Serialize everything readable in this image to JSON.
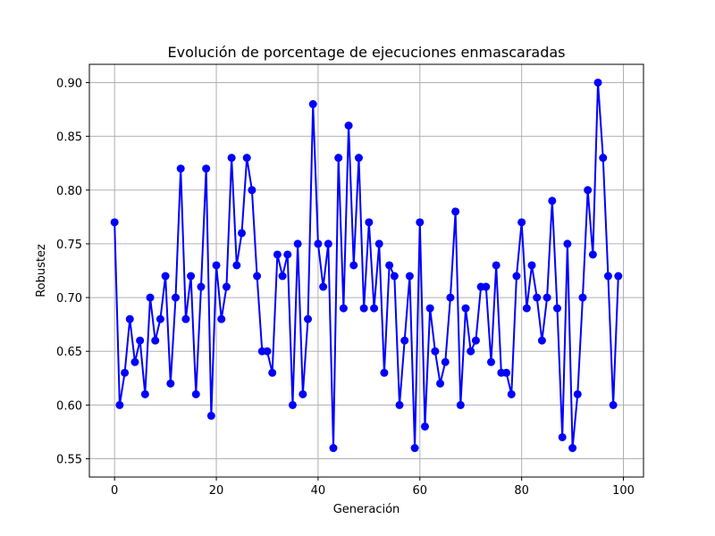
{
  "chart_data": {
    "type": "line",
    "title": "Evolución de porcentage de ejecuciones enmascaradas",
    "xlabel": "Generación",
    "ylabel": "Robustez",
    "xlim": [
      -4.95,
      103.95
    ],
    "ylim": [
      0.533,
      0.917
    ],
    "xticks": [
      0,
      20,
      40,
      60,
      80,
      100
    ],
    "yticks": [
      0.55,
      0.6,
      0.65,
      0.7,
      0.75,
      0.8,
      0.85,
      0.9
    ],
    "ytick_labels": [
      "0.55",
      "0.60",
      "0.65",
      "0.70",
      "0.75",
      "0.80",
      "0.85",
      "0.90"
    ],
    "grid": true,
    "series": [
      {
        "color": "#0000ff",
        "marker": "circle",
        "x": [
          0,
          1,
          2,
          3,
          4,
          5,
          6,
          7,
          8,
          9,
          10,
          11,
          12,
          13,
          14,
          15,
          16,
          17,
          18,
          19,
          20,
          21,
          22,
          23,
          24,
          25,
          26,
          27,
          28,
          29,
          30,
          31,
          32,
          33,
          34,
          35,
          36,
          37,
          38,
          39,
          40,
          41,
          42,
          43,
          44,
          45,
          46,
          47,
          48,
          49,
          50,
          51,
          52,
          53,
          54,
          55,
          56,
          57,
          58,
          59,
          60,
          61,
          62,
          63,
          64,
          65,
          66,
          67,
          68,
          69,
          70,
          71,
          72,
          73,
          74,
          75,
          76,
          77,
          78,
          79,
          80,
          81,
          82,
          83,
          84,
          85,
          86,
          87,
          88,
          89,
          90,
          91,
          92,
          93,
          94,
          95,
          96,
          97,
          98,
          99
        ],
        "y": [
          0.77,
          0.6,
          0.63,
          0.68,
          0.64,
          0.66,
          0.61,
          0.7,
          0.66,
          0.68,
          0.72,
          0.62,
          0.7,
          0.82,
          0.68,
          0.72,
          0.61,
          0.71,
          0.82,
          0.59,
          0.73,
          0.68,
          0.71,
          0.83,
          0.73,
          0.76,
          0.83,
          0.8,
          0.72,
          0.65,
          0.65,
          0.63,
          0.74,
          0.72,
          0.74,
          0.6,
          0.75,
          0.61,
          0.68,
          0.88,
          0.75,
          0.71,
          0.75,
          0.56,
          0.83,
          0.69,
          0.86,
          0.73,
          0.83,
          0.69,
          0.77,
          0.69,
          0.75,
          0.63,
          0.73,
          0.72,
          0.6,
          0.66,
          0.72,
          0.56,
          0.77,
          0.58,
          0.69,
          0.65,
          0.62,
          0.64,
          0.7,
          0.78,
          0.6,
          0.69,
          0.65,
          0.66,
          0.71,
          0.71,
          0.64,
          0.73,
          0.63,
          0.63,
          0.61,
          0.72,
          0.77,
          0.69,
          0.73,
          0.7,
          0.66,
          0.7,
          0.79,
          0.69,
          0.57,
          0.75,
          0.56,
          0.61,
          0.7,
          0.8,
          0.74,
          0.9,
          0.83,
          0.72,
          0.6,
          0.72
        ]
      }
    ]
  }
}
